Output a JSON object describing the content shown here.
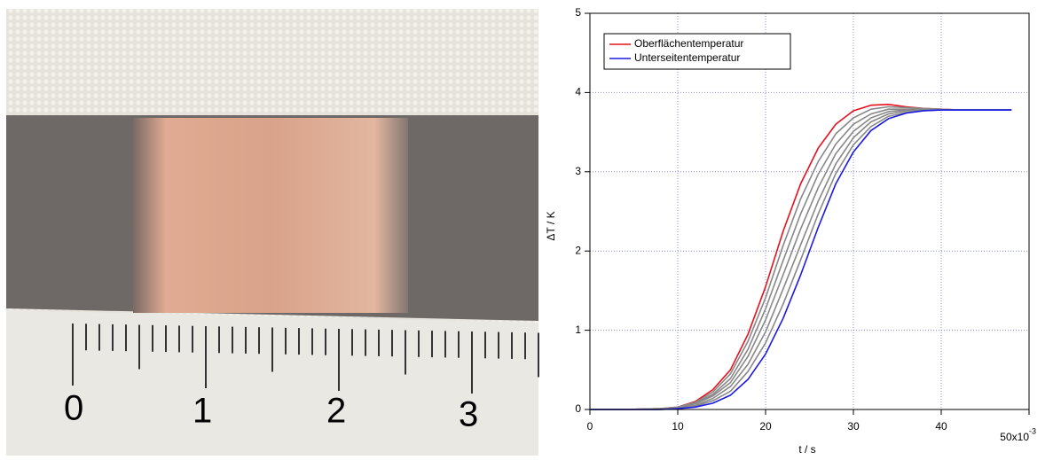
{
  "photo": {
    "ruler_labels": [
      "0",
      "1",
      "2",
      "3"
    ]
  },
  "chart_data": {
    "type": "line",
    "x_label": "t / s",
    "y_label": "ΔT / K",
    "x": [
      0,
      4,
      8,
      10,
      12,
      14,
      16,
      18,
      20,
      22,
      24,
      26,
      28,
      30,
      32,
      34,
      36,
      38,
      40,
      42,
      44,
      46,
      48
    ],
    "series": [
      {
        "name": "Oberflächentemperatur",
        "color": "#e8101c",
        "values": [
          0,
          0,
          0.01,
          0.03,
          0.1,
          0.25,
          0.5,
          0.95,
          1.55,
          2.25,
          2.85,
          3.3,
          3.6,
          3.77,
          3.84,
          3.85,
          3.82,
          3.8,
          3.79,
          3.78,
          3.78,
          3.78,
          3.78
        ]
      },
      {
        "color": "#888888",
        "values": [
          0,
          0,
          0.01,
          0.03,
          0.09,
          0.22,
          0.45,
          0.86,
          1.41,
          2.07,
          2.66,
          3.13,
          3.48,
          3.68,
          3.79,
          3.82,
          3.81,
          3.8,
          3.79,
          3.78,
          3.78,
          3.78,
          3.78
        ]
      },
      {
        "color": "#888888",
        "values": [
          0,
          0,
          0.01,
          0.02,
          0.08,
          0.19,
          0.39,
          0.76,
          1.27,
          1.88,
          2.47,
          2.97,
          3.35,
          3.6,
          3.73,
          3.79,
          3.79,
          3.79,
          3.78,
          3.78,
          3.78,
          3.78,
          3.78
        ]
      },
      {
        "color": "#888888",
        "values": [
          0,
          0,
          0,
          0.02,
          0.07,
          0.17,
          0.34,
          0.67,
          1.13,
          1.7,
          2.28,
          2.8,
          3.23,
          3.51,
          3.68,
          3.76,
          3.78,
          3.79,
          3.78,
          3.78,
          3.78,
          3.78,
          3.78
        ]
      },
      {
        "color": "#888888",
        "values": [
          0,
          0,
          0,
          0.02,
          0.05,
          0.14,
          0.29,
          0.57,
          0.98,
          1.52,
          2.08,
          2.63,
          3.1,
          3.43,
          3.63,
          3.73,
          3.77,
          3.78,
          3.78,
          3.78,
          3.78,
          3.78,
          3.78
        ]
      },
      {
        "color": "#888888",
        "values": [
          0,
          0,
          0,
          0.01,
          0.04,
          0.11,
          0.23,
          0.48,
          0.84,
          1.33,
          1.89,
          2.47,
          2.98,
          3.34,
          3.57,
          3.7,
          3.75,
          3.77,
          3.78,
          3.78,
          3.78,
          3.78,
          3.78
        ]
      },
      {
        "name": "Unterseitentemperatur",
        "color": "#1a1ae6",
        "values": [
          0,
          0,
          0,
          0.01,
          0.03,
          0.08,
          0.18,
          0.38,
          0.7,
          1.15,
          1.7,
          2.3,
          2.85,
          3.25,
          3.52,
          3.67,
          3.74,
          3.77,
          3.78,
          3.78,
          3.78,
          3.78,
          3.78
        ]
      }
    ],
    "xlim": [
      0,
      50
    ],
    "xticks": [
      0,
      10,
      20,
      30,
      40,
      {
        "value": 50,
        "label": "50x10"
      }
    ],
    "xtick_exponent": "-3",
    "ylim": [
      0,
      5
    ],
    "yticks": [
      0,
      1,
      2,
      3,
      4,
      5
    ],
    "grid": true,
    "grid_color": "#8a8ae0",
    "legend": "upper left"
  }
}
